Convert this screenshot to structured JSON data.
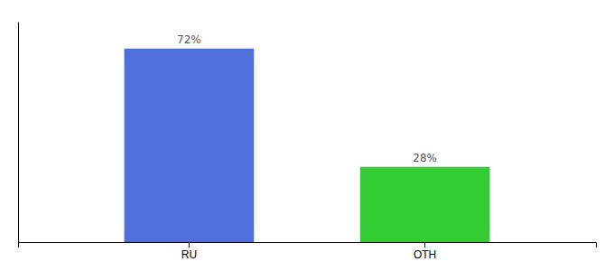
{
  "chart_data": {
    "type": "bar",
    "categories": [
      "RU",
      "OTH"
    ],
    "values": [
      72,
      28
    ],
    "value_labels": [
      "72%",
      "28%"
    ],
    "colors": [
      "#4f6fdb",
      "#33cc33"
    ],
    "ylim": [
      0,
      82
    ],
    "data_labels": true,
    "tick_labels": "x",
    "grid": false
  }
}
